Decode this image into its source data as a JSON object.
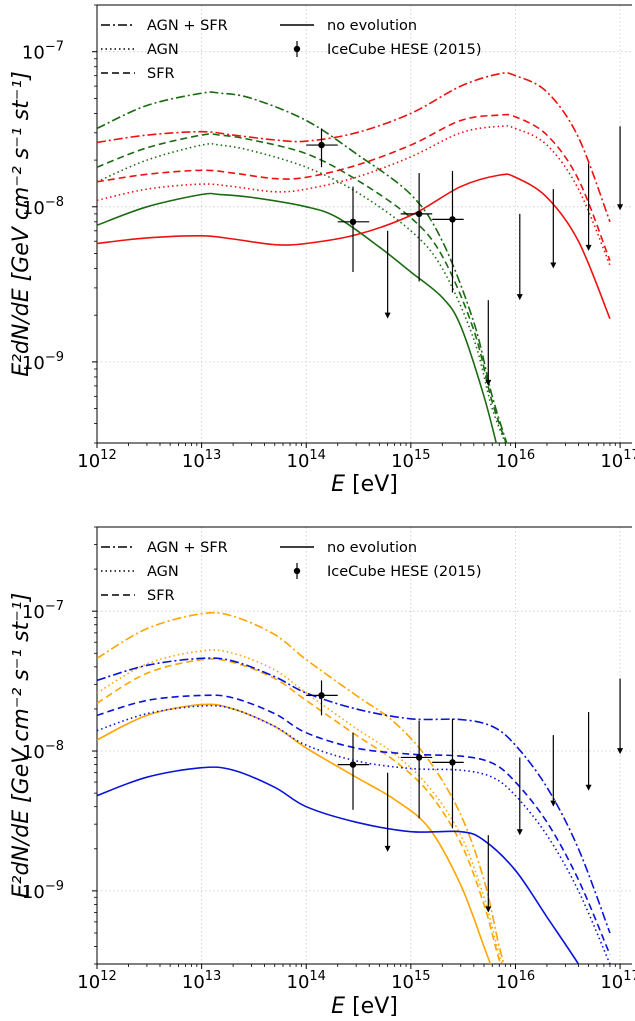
{
  "chart_data": [
    {
      "type": "line",
      "panel": "top",
      "xlabel_main": "E",
      "xlabel_unit": " [eV]",
      "ylabel": "E²dN/dE [GeV cm⁻² s⁻¹ st⁻¹]",
      "xscale": "log",
      "yscale": "log",
      "xlim": [
        1000000000000.0,
        1.3e+17
      ],
      "ylim": [
        3e-10,
        2e-07
      ],
      "grid": true,
      "legend_position": "top-left",
      "xticks": [
        {
          "value": 1000000000000.0,
          "mantissa": "10",
          "exp": "12"
        },
        {
          "value": 10000000000000.0,
          "mantissa": "10",
          "exp": "13"
        },
        {
          "value": 100000000000000.0,
          "mantissa": "10",
          "exp": "14"
        },
        {
          "value": 1000000000000000.0,
          "mantissa": "10",
          "exp": "15"
        },
        {
          "value": 1e+16,
          "mantissa": "10",
          "exp": "16"
        },
        {
          "value": 1e+17,
          "mantissa": "10",
          "exp": "17"
        }
      ],
      "yticks": [
        {
          "value": 1e-09,
          "mantissa": "10",
          "exp": "−9"
        },
        {
          "value": 1e-08,
          "mantissa": "10",
          "exp": "−8"
        },
        {
          "value": 1e-07,
          "mantissa": "10",
          "exp": "−7"
        }
      ],
      "legend": [
        {
          "label": "AGN + SFR",
          "style": "dashdot"
        },
        {
          "label": "AGN",
          "style": "dotted"
        },
        {
          "label": "SFR",
          "style": "dashed"
        },
        {
          "label": "no evolution",
          "style": "solid"
        },
        {
          "label": "IceCube HESE (2015)",
          "style": "errorbar"
        }
      ],
      "colors": {
        "group_a": "#1a6b12",
        "group_b": "#ee1111"
      },
      "series": [
        {
          "group": "a",
          "style": "dashdot",
          "x": [
            1000000000000.0,
            3000000000000.0,
            10000000000000.0,
            15000000000000.0,
            30000000000000.0,
            100000000000000.0,
            300000000000000.0,
            1000000000000000.0,
            2000000000000000.0,
            4000000000000000.0,
            6000000000000000.0,
            9000000000000000.0
          ],
          "y": [
            3.2e-08,
            4.5e-08,
            5.4e-08,
            5.4e-08,
            5e-08,
            3.6e-08,
            2.2e-08,
            1.2e-08,
            6e-09,
            1.8e-09,
            6e-10,
            2.5e-10
          ]
        },
        {
          "group": "a",
          "style": "dotted",
          "x": [
            1000000000000.0,
            3000000000000.0,
            10000000000000.0,
            15000000000000.0,
            30000000000000.0,
            100000000000000.0,
            300000000000000.0,
            1000000000000000.0,
            2000000000000000.0,
            4000000000000000.0,
            6000000000000000.0,
            9000000000000000.0
          ],
          "y": [
            1.45e-08,
            2e-08,
            2.5e-08,
            2.5e-08,
            2.3e-08,
            1.8e-08,
            1.25e-08,
            7e-09,
            4e-09,
            1.4e-09,
            5e-10,
            2.5e-10
          ]
        },
        {
          "group": "a",
          "style": "dashed",
          "x": [
            1000000000000.0,
            3000000000000.0,
            10000000000000.0,
            15000000000000.0,
            30000000000000.0,
            100000000000000.0,
            300000000000000.0,
            1000000000000000.0,
            2000000000000000.0,
            4000000000000000.0,
            6000000000000000.0,
            9000000000000000.0
          ],
          "y": [
            1.8e-08,
            2.4e-08,
            2.9e-08,
            2.9e-08,
            2.7e-08,
            2.2e-08,
            1.5e-08,
            8.5e-09,
            4.8e-09,
            1.6e-09,
            5.5e-10,
            2.5e-10
          ]
        },
        {
          "group": "a",
          "style": "solid",
          "x": [
            1000000000000.0,
            3000000000000.0,
            10000000000000.0,
            15000000000000.0,
            30000000000000.0,
            100000000000000.0,
            200000000000000.0,
            500000000000000.0,
            1000000000000000.0,
            2000000000000000.0,
            3000000000000000.0,
            5000000000000000.0,
            7000000000000000.0
          ],
          "y": [
            7.6e-09,
            1e-08,
            1.2e-08,
            1.2e-08,
            1.15e-08,
            1e-08,
            8.5e-09,
            5.5e-09,
            3.8e-09,
            2.6e-09,
            1.7e-09,
            6e-10,
            2.5e-10
          ]
        },
        {
          "group": "b",
          "style": "dashdot",
          "x": [
            1000000000000.0,
            3000000000000.0,
            10000000000000.0,
            20000000000000.0,
            50000000000000.0,
            100000000000000.0,
            300000000000000.0,
            1000000000000000.0,
            3000000000000000.0,
            7000000000000000.0,
            1e+16,
            2e+16,
            4e+16,
            8e+16
          ],
          "y": [
            2.6e-08,
            2.9e-08,
            3.05e-08,
            2.9e-08,
            2.7e-08,
            2.65e-08,
            3e-08,
            4e-08,
            6e-08,
            7.2e-08,
            7e-08,
            5.5e-08,
            2.8e-08,
            8e-09
          ]
        },
        {
          "group": "b",
          "style": "dotted",
          "x": [
            1000000000000.0,
            3000000000000.0,
            10000000000000.0,
            20000000000000.0,
            50000000000000.0,
            100000000000000.0,
            300000000000000.0,
            1000000000000000.0,
            3000000000000000.0,
            7000000000000000.0,
            1e+16,
            2e+16,
            4e+16,
            8e+16
          ],
          "y": [
            1.1e-08,
            1.3e-08,
            1.4e-08,
            1.35e-08,
            1.25e-08,
            1.3e-08,
            1.55e-08,
            2.1e-08,
            3e-08,
            3.3e-08,
            3.2e-08,
            2.5e-08,
            1.3e-08,
            4.2e-09
          ]
        },
        {
          "group": "b",
          "style": "dashed",
          "x": [
            1000000000000.0,
            3000000000000.0,
            10000000000000.0,
            20000000000000.0,
            50000000000000.0,
            100000000000000.0,
            300000000000000.0,
            1000000000000000.0,
            3000000000000000.0,
            7000000000000000.0,
            1e+16,
            2e+16,
            4e+16,
            8e+16
          ],
          "y": [
            1.45e-08,
            1.62e-08,
            1.72e-08,
            1.65e-08,
            1.52e-08,
            1.55e-08,
            1.85e-08,
            2.5e-08,
            3.6e-08,
            3.9e-08,
            3.8e-08,
            2.9e-08,
            1.5e-08,
            4.5e-09
          ]
        },
        {
          "group": "b",
          "style": "solid",
          "x": [
            1000000000000.0,
            3000000000000.0,
            10000000000000.0,
            20000000000000.0,
            50000000000000.0,
            100000000000000.0,
            300000000000000.0,
            1000000000000000.0,
            3000000000000000.0,
            7000000000000000.0,
            1e+16,
            2e+16,
            4e+16,
            8e+16
          ],
          "y": [
            5.8e-09,
            6.3e-09,
            6.5e-09,
            6.2e-09,
            5.7e-09,
            5.8e-09,
            6.6e-09,
            8.8e-09,
            1.35e-08,
            1.6e-08,
            1.55e-08,
            1.15e-08,
            6e-09,
            1.9e-09
          ]
        }
      ],
      "data_points": [
        {
          "x": 140000000000000.0,
          "y": 2.5e-08,
          "xerr": [
            100000000000000.0,
            200000000000000.0
          ],
          "yerr": [
            1.8e-08,
            3.2e-08
          ]
        },
        {
          "x": 280000000000000.0,
          "y": 8e-09,
          "xerr": [
            200000000000000.0,
            400000000000000.0
          ],
          "yerr": [
            3.8e-09,
            1.35e-08
          ]
        },
        {
          "x": 1200000000000000.0,
          "y": 9e-09,
          "xerr": [
            800000000000000.0,
            1600000000000000.0
          ],
          "yerr": [
            3.3e-09,
            1.65e-08
          ]
        },
        {
          "x": 2500000000000000.0,
          "y": 8.3e-09,
          "xerr": [
            1600000000000000.0,
            3200000000000000.0
          ],
          "yerr": [
            2.8e-09,
            1.7e-08
          ]
        }
      ],
      "upper_limits": [
        {
          "x": 600000000000000.0,
          "y_top": 7e-09,
          "y_bottom": 1.9e-09
        },
        {
          "x": 5500000000000000.0,
          "y_top": 2.5e-09,
          "y_bottom": 7e-10
        },
        {
          "x": 1.1e+16,
          "y_top": 9e-09,
          "y_bottom": 2.5e-09
        },
        {
          "x": 2.3e+16,
          "y_top": 1.3e-08,
          "y_bottom": 4e-09
        },
        {
          "x": 5e+16,
          "y_top": 1.9e-08,
          "y_bottom": 5.2e-09
        },
        {
          "x": 1e+17,
          "y_top": 3.3e-08,
          "y_bottom": 9.5e-09
        }
      ]
    },
    {
      "type": "line",
      "panel": "bottom",
      "xlabel_main": "E",
      "xlabel_unit": " [eV]",
      "ylabel": "E²dN/dE [GeV cm⁻² s⁻¹ st⁻¹]",
      "xscale": "log",
      "yscale": "log",
      "xlim": [
        1000000000000.0,
        1.3e+17
      ],
      "ylim": [
        3e-10,
        4e-07
      ],
      "grid": true,
      "legend_position": "top-left",
      "xticks": [
        {
          "value": 1000000000000.0,
          "mantissa": "10",
          "exp": "12"
        },
        {
          "value": 10000000000000.0,
          "mantissa": "10",
          "exp": "13"
        },
        {
          "value": 100000000000000.0,
          "mantissa": "10",
          "exp": "14"
        },
        {
          "value": 1000000000000000.0,
          "mantissa": "10",
          "exp": "15"
        },
        {
          "value": 1e+16,
          "mantissa": "10",
          "exp": "16"
        },
        {
          "value": 1e+17,
          "mantissa": "10",
          "exp": "17"
        }
      ],
      "yticks": [
        {
          "value": 1e-09,
          "mantissa": "10",
          "exp": "−9"
        },
        {
          "value": 1e-08,
          "mantissa": "10",
          "exp": "−8"
        },
        {
          "value": 1e-07,
          "mantissa": "10",
          "exp": "−7"
        }
      ],
      "legend": [
        {
          "label": "AGN + SFR",
          "style": "dashdot"
        },
        {
          "label": "AGN",
          "style": "dotted"
        },
        {
          "label": "SFR",
          "style": "dashed"
        },
        {
          "label": "no evolution",
          "style": "solid"
        },
        {
          "label": "IceCube HESE (2015)",
          "style": "errorbar"
        }
      ],
      "colors": {
        "group_a": "#ffa500",
        "group_b": "#0a14d8"
      },
      "series": [
        {
          "group": "a",
          "style": "dashdot",
          "x": [
            1000000000000.0,
            3000000000000.0,
            10000000000000.0,
            20000000000000.0,
            50000000000000.0,
            100000000000000.0,
            300000000000000.0,
            700000000000000.0,
            1500000000000000.0,
            3000000000000000.0,
            5000000000000000.0,
            7000000000000000.0,
            9000000000000000.0
          ],
          "y": [
            4.6e-08,
            7.5e-08,
            9.6e-08,
            9.2e-08,
            6.8e-08,
            4.5e-08,
            2.5e-08,
            1.6e-08,
            8.5e-09,
            3.5e-09,
            1.2e-09,
            4e-10,
            2e-10
          ]
        },
        {
          "group": "a",
          "style": "dotted",
          "x": [
            1000000000000.0,
            3000000000000.0,
            10000000000000.0,
            20000000000000.0,
            50000000000000.0,
            100000000000000.0,
            300000000000000.0,
            700000000000000.0,
            1500000000000000.0,
            3000000000000000.0,
            5000000000000000.0,
            7000000000000000.0,
            9000000000000000.0
          ],
          "y": [
            2.6e-08,
            4.2e-08,
            5.2e-08,
            5e-08,
            3.8e-08,
            2.6e-08,
            1.45e-08,
            9.5e-09,
            5.5e-09,
            2.5e-09,
            9e-10,
            3.5e-10,
            2e-10
          ]
        },
        {
          "group": "a",
          "style": "dashed",
          "x": [
            1000000000000.0,
            3000000000000.0,
            10000000000000.0,
            20000000000000.0,
            50000000000000.0,
            100000000000000.0,
            300000000000000.0,
            700000000000000.0,
            1500000000000000.0,
            3000000000000000.0,
            5000000000000000.0,
            7000000000000000.0,
            9000000000000000.0
          ],
          "y": [
            2.2e-08,
            3.6e-08,
            4.5e-08,
            4.3e-08,
            3.3e-08,
            2.3e-08,
            1.3e-08,
            8.5e-09,
            5e-09,
            2.2e-09,
            8e-10,
            3.2e-10,
            2e-10
          ]
        },
        {
          "group": "a",
          "style": "solid",
          "x": [
            1000000000000.0,
            3000000000000.0,
            10000000000000.0,
            20000000000000.0,
            50000000000000.0,
            100000000000000.0,
            300000000000000.0,
            700000000000000.0,
            1500000000000000.0,
            3000000000000000.0,
            5000000000000000.0,
            7000000000000000.0
          ],
          "y": [
            1.2e-08,
            1.8e-08,
            2.15e-08,
            2e-08,
            1.5e-08,
            1.05e-08,
            6.5e-09,
            4.5e-09,
            2.8e-09,
            1.1e-09,
            4e-10,
            2e-10
          ]
        },
        {
          "group": "b",
          "style": "dashdot",
          "x": [
            1000000000000.0,
            3000000000000.0,
            10000000000000.0,
            20000000000000.0,
            50000000000000.0,
            100000000000000.0,
            300000000000000.0,
            1000000000000000.0,
            3000000000000000.0,
            6000000000000000.0,
            1e+16,
            2e+16,
            4e+16,
            8e+16
          ],
          "y": [
            3.2e-08,
            4.1e-08,
            4.6e-08,
            4.4e-08,
            3.4e-08,
            2.6e-08,
            2e-08,
            1.7e-08,
            1.68e-08,
            1.5e-08,
            1.1e-08,
            5.5e-09,
            2e-09,
            5e-10
          ]
        },
        {
          "group": "b",
          "style": "dotted",
          "x": [
            1000000000000.0,
            3000000000000.0,
            10000000000000.0,
            20000000000000.0,
            50000000000000.0,
            100000000000000.0,
            300000000000000.0,
            1000000000000000.0,
            3000000000000000.0,
            6000000000000000.0,
            1e+16,
            2e+16,
            4e+16,
            8e+16
          ],
          "y": [
            1.4e-08,
            1.85e-08,
            2.1e-08,
            2e-08,
            1.5e-08,
            1.1e-08,
            8.5e-09,
            7.5e-09,
            7.3e-09,
            6.5e-09,
            4.8e-09,
            2.5e-09,
            1e-09,
            3e-10
          ]
        },
        {
          "group": "b",
          "style": "dashed",
          "x": [
            1000000000000.0,
            3000000000000.0,
            10000000000000.0,
            20000000000000.0,
            50000000000000.0,
            100000000000000.0,
            300000000000000.0,
            1000000000000000.0,
            3000000000000000.0,
            6000000000000000.0,
            1e+16,
            2e+16,
            4e+16,
            8e+16
          ],
          "y": [
            1.8e-08,
            2.3e-08,
            2.5e-08,
            2.4e-08,
            1.85e-08,
            1.35e-08,
            1.05e-08,
            9.5e-09,
            9.2e-09,
            8.2e-09,
            6e-09,
            3.1e-09,
            1.2e-09,
            3.5e-10
          ]
        },
        {
          "group": "b",
          "style": "solid",
          "x": [
            1000000000000.0,
            3000000000000.0,
            10000000000000.0,
            20000000000000.0,
            50000000000000.0,
            100000000000000.0,
            300000000000000.0,
            1000000000000000.0,
            3000000000000000.0,
            5000000000000000.0,
            1e+16,
            2e+16,
            4e+16,
            6e+16
          ],
          "y": [
            4.8e-09,
            6.5e-09,
            7.6e-09,
            7.3e-09,
            5.5e-09,
            4e-09,
            3.1e-09,
            2.65e-09,
            2.65e-09,
            2.3e-09,
            1.4e-09,
            6.5e-10,
            3e-10,
            1.8e-10
          ]
        }
      ],
      "data_points": [
        {
          "x": 140000000000000.0,
          "y": 2.5e-08,
          "xerr": [
            100000000000000.0,
            200000000000000.0
          ],
          "yerr": [
            1.8e-08,
            3.2e-08
          ]
        },
        {
          "x": 280000000000000.0,
          "y": 8e-09,
          "xerr": [
            200000000000000.0,
            400000000000000.0
          ],
          "yerr": [
            3.8e-09,
            1.35e-08
          ]
        },
        {
          "x": 1200000000000000.0,
          "y": 9e-09,
          "xerr": [
            800000000000000.0,
            1600000000000000.0
          ],
          "yerr": [
            3.3e-09,
            1.65e-08
          ]
        },
        {
          "x": 2500000000000000.0,
          "y": 8.3e-09,
          "xerr": [
            1600000000000000.0,
            3200000000000000.0
          ],
          "yerr": [
            2.8e-09,
            1.7e-08
          ]
        }
      ],
      "upper_limits": [
        {
          "x": 600000000000000.0,
          "y_top": 7e-09,
          "y_bottom": 1.9e-09
        },
        {
          "x": 5500000000000000.0,
          "y_top": 2.5e-09,
          "y_bottom": 7e-10
        },
        {
          "x": 1.1e+16,
          "y_top": 9e-09,
          "y_bottom": 2.5e-09
        },
        {
          "x": 2.3e+16,
          "y_top": 1.3e-08,
          "y_bottom": 4e-09
        },
        {
          "x": 5e+16,
          "y_top": 1.9e-08,
          "y_bottom": 5.2e-09
        },
        {
          "x": 1e+17,
          "y_top": 3.3e-08,
          "y_bottom": 9.5e-09
        }
      ]
    }
  ]
}
